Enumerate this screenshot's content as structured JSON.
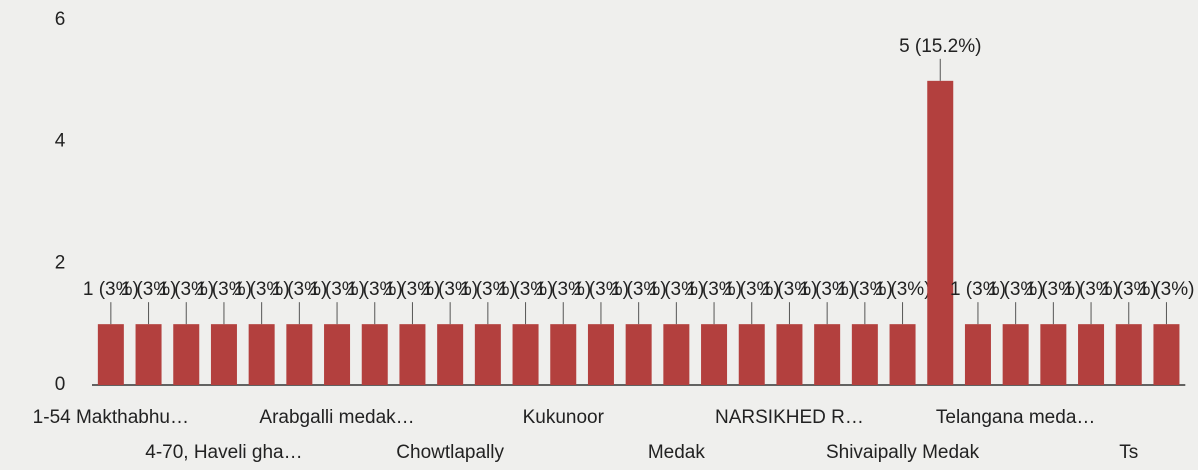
{
  "chart_data": {
    "type": "bar",
    "categories": [
      "1-54 Makthabhu…",
      null,
      null,
      "4-70, Haveli gha…",
      null,
      null,
      "Arabgalli medak…",
      null,
      null,
      "Chowtlapally",
      null,
      null,
      "Kukunoor",
      null,
      null,
      "Medak",
      null,
      null,
      "NARSIKHED R…",
      null,
      null,
      "Shivaipally Medak",
      null,
      null,
      "Telangana meda…",
      null,
      null,
      "Ts",
      null
    ],
    "values": [
      1,
      1,
      1,
      1,
      1,
      1,
      1,
      1,
      1,
      1,
      1,
      1,
      1,
      1,
      1,
      1,
      1,
      1,
      1,
      1,
      1,
      1,
      5,
      1,
      1,
      1,
      1,
      1,
      1
    ],
    "value_labels": [
      "1 (3%)",
      "1 (3%)",
      "1 (3%)",
      "1 (3%)",
      "1 (3%)",
      "1 (3%)",
      "1 (3%)",
      "1 (3%)",
      "1 (3%)",
      "1 (3%)",
      "1 (3%)",
      "1 (3%)",
      "1 (3%)",
      "1 (3%)",
      "1 (3%)",
      "1 (3%)",
      "1 (3%)",
      "1 (3%)",
      "1 (3%)",
      "1 (3%)",
      "1 (3%)",
      "1 (3%)",
      "5 (15.2%)",
      "1 (3%)",
      "1 (3%)",
      "1 (3%)",
      "1 (3%)",
      "1 (3%)",
      "1 (3%)"
    ],
    "color": "#b3403e",
    "ylim": [
      0,
      6
    ],
    "yticks": [
      0,
      2,
      4,
      6
    ]
  }
}
